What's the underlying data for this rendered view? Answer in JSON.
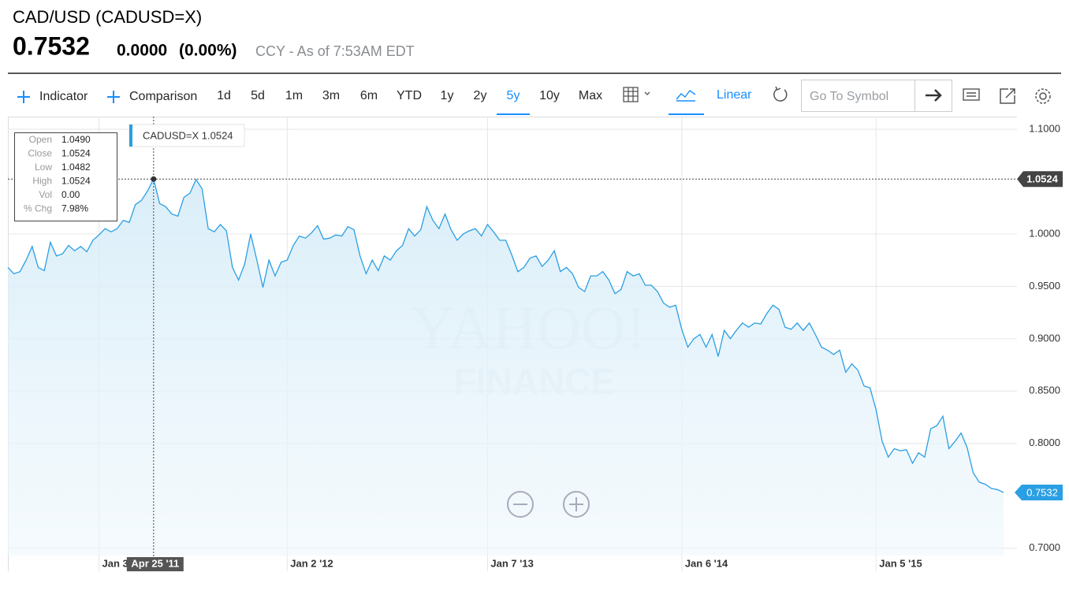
{
  "header": {
    "title": "CAD/USD (CADUSD=X)",
    "price": "0.7532",
    "change": "0.0000",
    "change_pct": "(0.00%)",
    "meta": "CCY - As of 7:53AM EDT"
  },
  "toolbar": {
    "indicator": "Indicator",
    "comparison": "Comparison",
    "ranges": [
      "1d",
      "5d",
      "1m",
      "3m",
      "6m",
      "YTD",
      "1y",
      "2y",
      "5y",
      "10y",
      "Max"
    ],
    "selected_range": 8,
    "scale": "Linear",
    "symbol_placeholder": "Go To Symbol"
  },
  "chart_data": {
    "type": "area",
    "color": "#2a9fe3",
    "grid": true,
    "watermark": [
      "YAHOO!",
      "FINANCE"
    ],
    "values": [
      0.968,
      0.962,
      0.964,
      0.975,
      0.988,
      0.968,
      0.965,
      0.992,
      0.979,
      0.981,
      0.989,
      0.984,
      0.988,
      0.983,
      0.994,
      0.999,
      1.005,
      1.002,
      1.005,
      1.013,
      1.011,
      1.028,
      1.032,
      1.041,
      1.0524,
      1.029,
      1.026,
      1.019,
      1.017,
      1.035,
      1.039,
      1.052,
      1.043,
      1.005,
      1.002,
      1.009,
      1.003,
      0.968,
      0.956,
      0.971,
      1.0,
      0.975,
      0.949,
      0.975,
      0.96,
      0.973,
      0.975,
      0.989,
      0.998,
      0.996,
      1.001,
      1.008,
      0.995,
      0.996,
      0.999,
      0.998,
      1.007,
      1.004,
      0.979,
      0.962,
      0.975,
      0.965,
      0.979,
      0.975,
      0.984,
      0.989,
      1.005,
      0.998,
      1.004,
      1.026,
      1.013,
      1.005,
      1.019,
      1.004,
      0.994,
      1.0,
      1.003,
      1.005,
      0.998,
      1.009,
      1.002,
      0.994,
      0.994,
      0.98,
      0.964,
      0.968,
      0.977,
      0.979,
      0.969,
      0.975,
      0.984,
      0.964,
      0.968,
      0.962,
      0.949,
      0.945,
      0.96,
      0.96,
      0.964,
      0.956,
      0.943,
      0.947,
      0.964,
      0.96,
      0.962,
      0.951,
      0.951,
      0.945,
      0.934,
      0.93,
      0.932,
      0.909,
      0.892,
      0.9,
      0.904,
      0.892,
      0.904,
      0.883,
      0.908,
      0.9,
      0.908,
      0.915,
      0.911,
      0.915,
      0.914,
      0.924,
      0.932,
      0.928,
      0.911,
      0.909,
      0.915,
      0.908,
      0.915,
      0.904,
      0.892,
      0.889,
      0.885,
      0.889,
      0.868,
      0.876,
      0.87,
      0.855,
      0.853,
      0.832,
      0.802,
      0.787,
      0.795,
      0.793,
      0.794,
      0.781,
      0.791,
      0.787,
      0.814,
      0.817,
      0.826,
      0.795,
      0.802,
      0.81,
      0.796,
      0.772,
      0.763,
      0.761,
      0.757,
      0.756,
      0.7532
    ],
    "last_label": "0.7532",
    "ylim": [
      0.693,
      1.112
    ],
    "yticks": [
      {
        "value": 0.7,
        "label": "0.7000"
      },
      {
        "value": 0.8,
        "label": "0.8000"
      },
      {
        "value": 0.85,
        "label": "0.8500"
      },
      {
        "value": 0.9,
        "label": "0.9000"
      },
      {
        "value": 0.95,
        "label": "0.9500"
      },
      {
        "value": 1,
        "label": "1.0000"
      },
      {
        "value": 1.1,
        "label": "1.1000"
      }
    ],
    "xticks": [
      {
        "value": 15,
        "label": "Jan 3"
      },
      {
        "value": 46,
        "label": "Jan 2 '12"
      },
      {
        "value": 79,
        "label": "Jan 7 '13"
      },
      {
        "value": 111,
        "label": "Jan 6 '14"
      },
      {
        "value": 143,
        "label": "Jan 5 '15"
      }
    ],
    "crosshair": {
      "value": 24,
      "label": "Apr 25 '11",
      "legend": "CADUSD=X 1.0524",
      "price": "1.0524",
      "tooltip": [
        [
          "Open",
          "1.0490"
        ],
        [
          "Close",
          "1.0524"
        ],
        [
          "Low",
          "1.0482"
        ],
        [
          "High",
          "1.0524"
        ],
        [
          "Vol",
          "0.00"
        ],
        [
          "% Chg",
          "7.98%"
        ]
      ]
    }
  }
}
